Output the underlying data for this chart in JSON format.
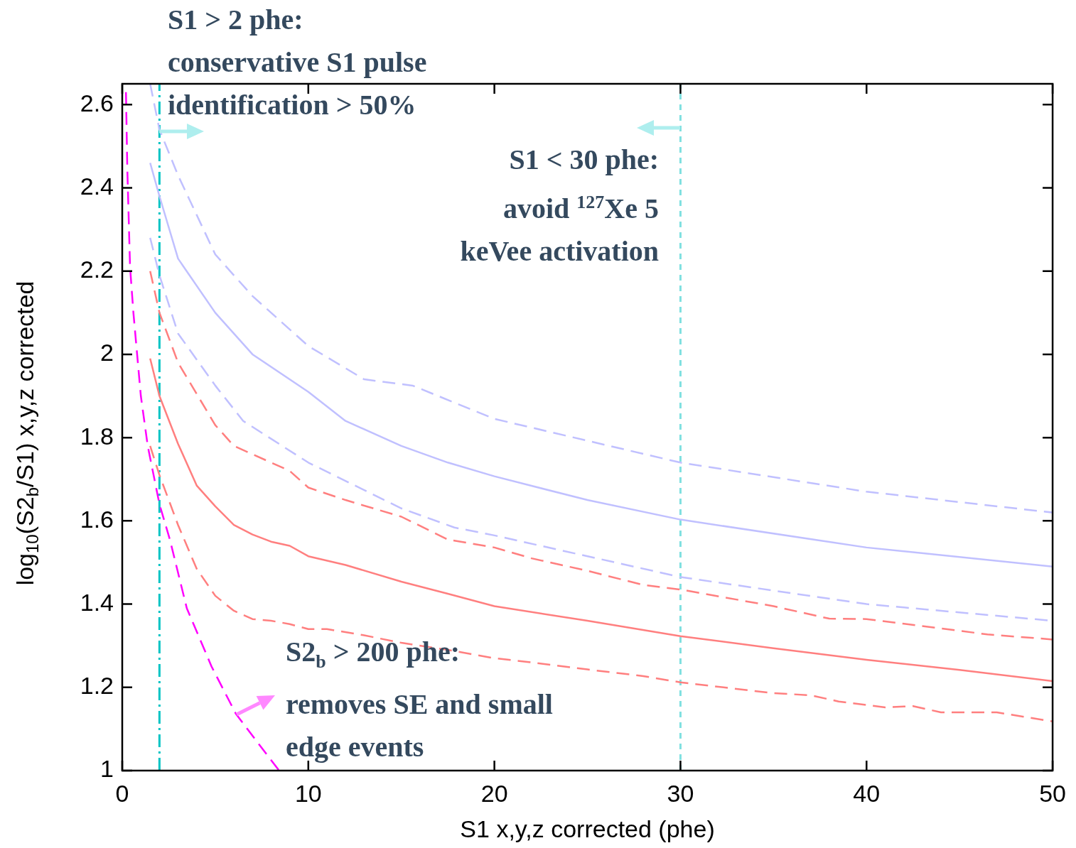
{
  "chart_data": {
    "type": "line",
    "xlabel": "S1 x,y,z corrected (phe)",
    "ylabel": "log$_{10}$(S2$_{b}$/S1) x,y,z corrected",
    "xlim": [
      0,
      50
    ],
    "xticks": [
      0,
      10,
      20,
      30,
      40,
      50
    ],
    "ylim": [
      1,
      2.65
    ],
    "yticks": [
      1,
      1.2,
      1.4,
      1.6,
      1.8,
      2,
      2.2,
      2.4,
      2.6
    ],
    "grid": false,
    "legend": false,
    "marker": "none",
    "series": [
      {
        "color": "#c0c0ff",
        "line_style": "dashed",
        "x": [
          1.5,
          2,
          3,
          5,
          7,
          10,
          13,
          15.6,
          20,
          30,
          40,
          50
        ],
        "values": [
          2.65,
          2.54,
          2.43,
          2.24,
          2.14,
          2.02,
          1.94,
          1.925,
          1.845,
          1.74,
          1.67,
          1.62
        ]
      },
      {
        "color": "#c0c0ff",
        "line_style": "solid",
        "x": [
          1.5,
          2,
          3,
          5,
          7,
          10,
          12,
          15,
          17.5,
          20,
          25,
          30,
          40,
          50
        ],
        "values": [
          2.46,
          2.38,
          2.23,
          2.1,
          2,
          1.91,
          1.84,
          1.78,
          1.74,
          1.707,
          1.65,
          1.603,
          1.536,
          1.49
        ]
      },
      {
        "color": "#c0c0ff",
        "line_style": "dashed",
        "x": [
          1.5,
          2,
          3,
          5,
          6.5,
          10,
          15,
          17.85,
          20,
          30,
          40,
          50
        ],
        "values": [
          2.28,
          2.19,
          2.05,
          1.925,
          1.84,
          1.74,
          1.63,
          1.584,
          1.565,
          1.465,
          1.4,
          1.36
        ]
      },
      {
        "color": "#ff7f7f",
        "line_style": "dashed",
        "x": [
          1.5,
          2,
          3,
          5,
          6,
          8,
          9,
          10,
          12,
          15,
          17.5,
          20,
          22,
          25,
          28,
          30,
          35,
          38,
          40,
          45,
          46.5,
          50
        ],
        "values": [
          2.2,
          2.1,
          1.98,
          1.83,
          1.78,
          1.74,
          1.72,
          1.68,
          1.65,
          1.61,
          1.555,
          1.536,
          1.51,
          1.48,
          1.446,
          1.435,
          1.395,
          1.365,
          1.364,
          1.336,
          1.327,
          1.315
        ]
      },
      {
        "color": "#ff7f7f",
        "line_style": "solid",
        "x": [
          1.5,
          2,
          3,
          4,
          5,
          6,
          7,
          8,
          9,
          10,
          12,
          15,
          17.5,
          20,
          25,
          30,
          35,
          40,
          45,
          50
        ],
        "values": [
          1.99,
          1.9,
          1.785,
          1.685,
          1.635,
          1.59,
          1.567,
          1.55,
          1.54,
          1.515,
          1.494,
          1.454,
          1.425,
          1.395,
          1.36,
          1.323,
          1.294,
          1.266,
          1.242,
          1.215
        ]
      },
      {
        "color": "#ff7f7f",
        "line_style": "dashed",
        "x": [
          1.5,
          2,
          3,
          4,
          5,
          6,
          7,
          8,
          9,
          10,
          11,
          13,
          15,
          17.5,
          20,
          22,
          25,
          28,
          30,
          35,
          37,
          38.5,
          41,
          42.5,
          44,
          47,
          50
        ],
        "values": [
          1.78,
          1.71,
          1.59,
          1.485,
          1.42,
          1.384,
          1.364,
          1.36,
          1.352,
          1.34,
          1.34,
          1.325,
          1.307,
          1.29,
          1.27,
          1.26,
          1.243,
          1.227,
          1.212,
          1.186,
          1.181,
          1.166,
          1.152,
          1.155,
          1.14,
          1.14,
          1.118
        ]
      },
      {
        "color": "#ff00ff",
        "line_style": "dashed",
        "x": [
          0.2,
          0.27,
          0.42,
          0.6,
          1,
          1.37,
          2,
          2.56,
          3.47,
          4.8,
          6.1,
          7.4,
          8.43
        ],
        "values": [
          2.63,
          2.45,
          2.21,
          2.1,
          1.9,
          1.78,
          1.64,
          1.555,
          1.39,
          1.25,
          1.137,
          1.06,
          1
        ]
      }
    ],
    "ref_lines": [
      {
        "axis": "x",
        "value": 2,
        "color": "#00c4c4",
        "line_style": "dashed"
      },
      {
        "axis": "x",
        "value": 30,
        "color": "#80e0e0",
        "line_style": "dotted"
      }
    ],
    "annotations": [
      {
        "text": "S1 > 2 phe:\nconservative S1 pulse\nidentification >  50%",
        "x": 2,
        "y": 2.535
      },
      {
        "text": "S1 < 30 phe:\navoid $^{127}$Xe 5\nkeVee activation",
        "x": 30,
        "y": 2.544
      },
      {
        "text": "S2$_{b}$ > 200 phe:\nremoves SE and small\nedge events",
        "x": 6.14,
        "y": 1.135
      }
    ]
  }
}
